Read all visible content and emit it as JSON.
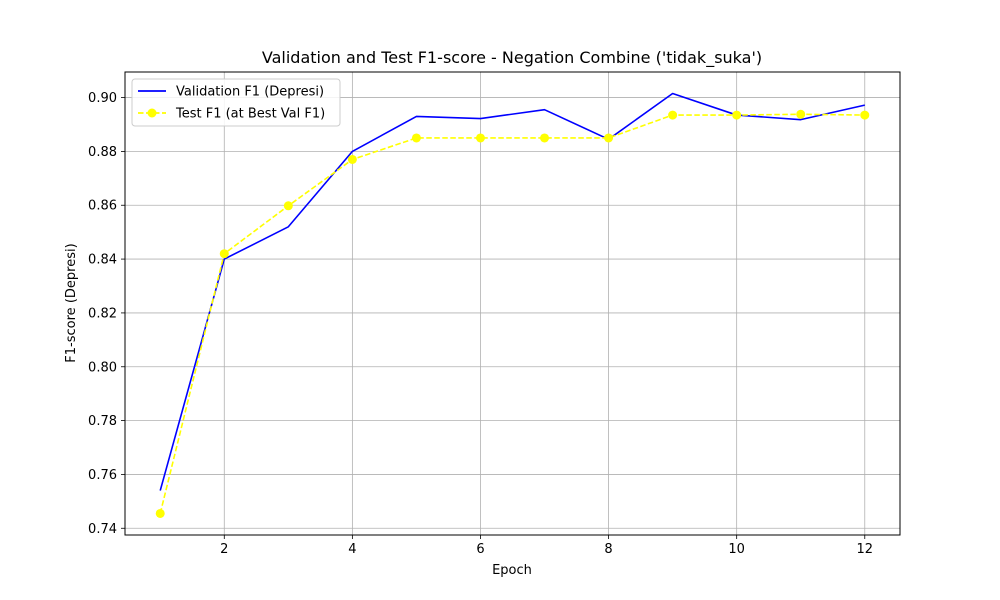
{
  "chart_data": {
    "type": "line",
    "title": "Validation and Test F1-score - Negation Combine ('tidak_suka')",
    "xlabel": "Epoch",
    "ylabel": "F1-score (Depresi)",
    "xlim": [
      0.45,
      12.55
    ],
    "ylim": [
      0.7375,
      0.9095
    ],
    "xticks": [
      2,
      4,
      6,
      8,
      10,
      12
    ],
    "yticks": [
      0.74,
      0.76,
      0.78,
      0.8,
      0.82,
      0.84,
      0.86,
      0.88,
      0.9
    ],
    "ytick_labels": [
      "0.74",
      "0.76",
      "0.78",
      "0.80",
      "0.82",
      "0.84",
      "0.86",
      "0.88",
      "0.90"
    ],
    "grid": true,
    "legend_position": "top-left",
    "x": [
      1,
      2,
      3,
      4,
      5,
      6,
      7,
      8,
      9,
      10,
      11,
      12
    ],
    "series": [
      {
        "name": "Validation F1 (Depresi)",
        "color": "#0000ff",
        "style": "solid",
        "marker": "none",
        "values": [
          0.754,
          0.84,
          0.852,
          0.88,
          0.893,
          0.8922,
          0.8955,
          0.8845,
          0.9015,
          0.8935,
          0.8918,
          0.8972
        ]
      },
      {
        "name": "Test F1 (at Best Val F1)",
        "color": "#ffff00",
        "style": "dashed",
        "marker": "circle",
        "values": [
          0.7455,
          0.842,
          0.8598,
          0.877,
          0.885,
          0.885,
          0.885,
          0.885,
          0.8935,
          0.8935,
          0.8938,
          0.8935
        ]
      }
    ]
  }
}
